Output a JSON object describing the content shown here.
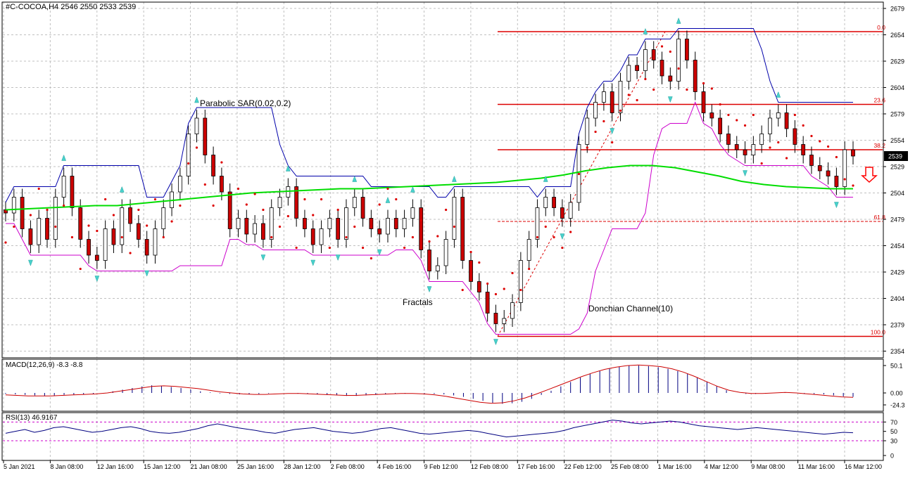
{
  "window": {
    "header_text": "#C-COCOA,H4  2546 2550 2533 2539"
  },
  "chart_data": {
    "type": "candlestick",
    "symbol": "#C-COCOA",
    "timeframe": "H4",
    "ohlc_header": {
      "open": 2546,
      "high": 2550,
      "low": 2533,
      "close": 2539
    },
    "last_price_label": "2539",
    "price_axis_ticks": [
      "2679",
      "2654",
      "2629",
      "2604",
      "2579",
      "2554",
      "2529",
      "2504",
      "2479",
      "2454",
      "2429",
      "2404",
      "2379",
      "2354"
    ],
    "time_axis_labels": [
      "5 Jan 2021",
      "8 Jan 08:00",
      "12 Jan 16:00",
      "15 Jan 12:00",
      "21 Jan 08:00",
      "25 Jan 16:00",
      "28 Jan 12:00",
      "2 Feb 08:00",
      "4 Feb 16:00",
      "9 Feb 12:00",
      "12 Feb 08:00",
      "17 Feb 16:00",
      "22 Feb 12:00",
      "25 Feb 08:00",
      "1 Mar 16:00",
      "4 Mar 12:00",
      "9 Mar 08:00",
      "11 Mar 16:00",
      "16 Mar 12:00"
    ],
    "close_series": [
      2485,
      2500,
      2470,
      2455,
      2480,
      2460,
      2500,
      2520,
      2490,
      2460,
      2445,
      2440,
      2470,
      2455,
      2490,
      2475,
      2460,
      2445,
      2470,
      2490,
      2505,
      2520,
      2560,
      2575,
      2540,
      2520,
      2505,
      2470,
      2480,
      2465,
      2475,
      2460,
      2490,
      2500,
      2510,
      2480,
      2470,
      2455,
      2470,
      2480,
      2460,
      2490,
      2500,
      2480,
      2470,
      2465,
      2480,
      2470,
      2480,
      2490,
      2450,
      2430,
      2435,
      2460,
      2500,
      2440,
      2420,
      2410,
      2390,
      2380,
      2385,
      2400,
      2440,
      2460,
      2490,
      2500,
      2490,
      2480,
      2495,
      2550,
      2575,
      2590,
      2600,
      2580,
      2610,
      2625,
      2620,
      2640,
      2630,
      2615,
      2610,
      2650,
      2630,
      2600,
      2580,
      2575,
      2560,
      2550,
      2545,
      2540,
      2550,
      2560,
      2575,
      2580,
      2565,
      2550,
      2540,
      2530,
      2525,
      2520,
      2510,
      2545,
      2539
    ],
    "moving_average": [
      2488,
      2489,
      2490,
      2491,
      2492,
      2492,
      2494,
      2496,
      2498,
      2500,
      2502,
      2504,
      2505,
      2506,
      2507,
      2508,
      2508,
      2509,
      2510,
      2511,
      2512,
      2513,
      2514,
      2516,
      2518,
      2521,
      2525,
      2528,
      2530,
      2530,
      2528,
      2524,
      2520,
      2515,
      2512,
      2510,
      2509,
      2508,
      2508
    ],
    "fibonacci_levels": [
      {
        "label": "0.0",
        "price": 2657
      },
      {
        "label": "23.6",
        "price": 2588
      },
      {
        "label": "38.2",
        "price": 2545
      },
      {
        "label": "61.8",
        "price": 2477
      },
      {
        "label": "100.0",
        "price": 2368
      }
    ],
    "annotations": [
      "Parabolic SAR(0.02,0.2)",
      "Fractals",
      "Donchian Channel(10)"
    ],
    "signal": "down-arrow",
    "macd": {
      "label": "MACD(12,26,9) -8.3 -8.8",
      "ticks": [
        "50.1",
        "0.00",
        "-24.3"
      ],
      "histogram": [
        -2,
        -3,
        -4,
        -5,
        -6,
        -5,
        -4,
        -4,
        -3,
        -2,
        0,
        3,
        6,
        9,
        12,
        14,
        13,
        11,
        9,
        6,
        3,
        1,
        -1,
        -2,
        -3,
        -3,
        -2,
        -1,
        0,
        0,
        -1,
        -2,
        -3,
        -4,
        -5,
        -6,
        -6,
        -5,
        -4,
        -3,
        -2,
        -1,
        0,
        -1,
        -2,
        -3,
        -5,
        -8,
        -12,
        -16,
        -20,
        -22,
        -21,
        -18,
        -12,
        -4,
        4,
        12,
        20,
        28,
        35,
        40,
        45,
        48,
        50,
        50,
        49,
        47,
        44,
        40,
        35,
        28,
        20,
        12,
        5,
        0,
        -2,
        -2,
        -1,
        0,
        1,
        0,
        -1,
        -2,
        -3,
        -5,
        -7,
        -8
      ],
      "signal_line": [
        -4,
        -5,
        -6,
        -6,
        -6,
        -5,
        -4,
        -3,
        -2,
        0,
        3,
        6,
        9,
        12,
        13,
        12,
        10,
        8,
        5,
        2,
        0,
        -2,
        -3,
        -3,
        -2,
        -1,
        -1,
        -2,
        -3,
        -4,
        -5,
        -5,
        -4,
        -3,
        -2,
        -1,
        -1,
        -2,
        -4,
        -7,
        -11,
        -15,
        -19,
        -21,
        -20,
        -16,
        -10,
        -2,
        6,
        14,
        22,
        30,
        37,
        43,
        47,
        50,
        51,
        50,
        48,
        44,
        38,
        30,
        21,
        12,
        5,
        1,
        -1,
        -1,
        0,
        1,
        0,
        -2,
        -4,
        -6,
        -8,
        -9
      ]
    },
    "rsi": {
      "label": "RSI(13) 46.9167",
      "ticks": [
        "70",
        "50",
        "30",
        "0"
      ],
      "values": [
        46,
        50,
        54,
        48,
        52,
        58,
        60,
        56,
        52,
        48,
        50,
        54,
        58,
        60,
        56,
        50,
        47,
        46,
        48,
        52,
        56,
        62,
        66,
        62,
        58,
        55,
        52,
        48,
        46,
        50,
        54,
        56,
        58,
        54,
        50,
        48,
        46,
        48,
        52,
        56,
        58,
        54,
        50,
        46,
        44,
        46,
        48,
        50,
        52,
        50,
        46,
        42,
        38,
        40,
        42,
        44,
        46,
        48,
        52,
        58,
        62,
        66,
        70,
        74,
        72,
        68,
        66,
        68,
        70,
        72,
        70,
        66,
        62,
        60,
        58,
        56,
        54,
        56,
        58,
        56,
        54,
        52,
        50,
        48,
        46,
        44,
        46,
        48,
        47
      ]
    }
  }
}
